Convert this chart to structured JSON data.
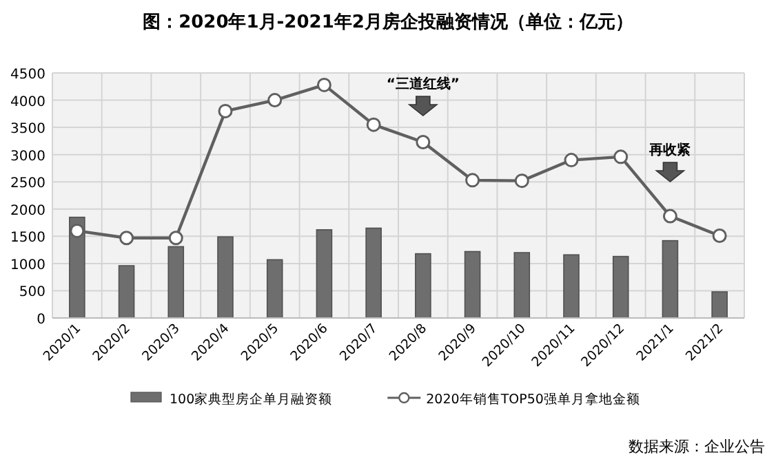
{
  "chart_data": {
    "type": "bar",
    "title": "图：2020年1月-2021年2月房企投融资情况（单位：亿元）",
    "categories": [
      "2020/1",
      "2020/2",
      "2020/3",
      "2020/4",
      "2020/5",
      "2020/6",
      "2020/7",
      "2020/8",
      "2020/9",
      "2020/10",
      "2020/11",
      "2020/12",
      "2021/1",
      "2021/2"
    ],
    "series": [
      {
        "name": "100家典型房企单月融资额",
        "color": "#6e6e6e",
        "values": [
          1850,
          960,
          1310,
          1490,
          1070,
          1620,
          1650,
          1180,
          1220,
          1200,
          1160,
          1130,
          1420,
          480
        ]
      },
      {
        "name": "2020年销售TOP50强单月拿地金额",
        "type": "line",
        "color": "#606060",
        "marker": "circle",
        "values": [
          1600,
          1470,
          1470,
          3800,
          4000,
          4280,
          3550,
          3230,
          2530,
          2520,
          2900,
          2960,
          1870,
          1510
        ]
      }
    ],
    "ylim": [
      0,
      4500
    ],
    "yticks": [
      0,
      500,
      1000,
      1500,
      2000,
      2500,
      3000,
      3500,
      4000,
      4500
    ],
    "grid": true,
    "legend": "bottom",
    "annotations": [
      "“三道红线”",
      "再收紧",
      "数据来源：企业公告"
    ]
  }
}
